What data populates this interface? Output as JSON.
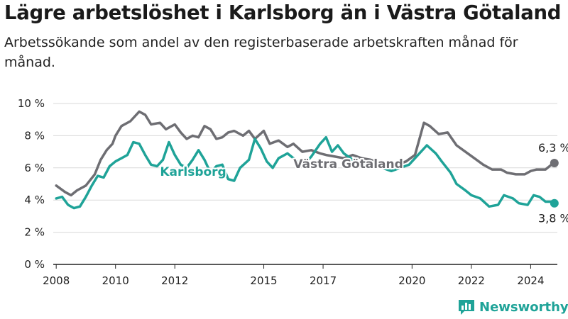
{
  "title": "Lägre arbetslöshet i Karlsborg än i Västra Götaland",
  "subtitle": "Arbetssökande som andel av den registerbaserade arbetskraften månad för månad.",
  "brand": {
    "name": "Newsworthy",
    "color": "#1fa398",
    "icon": "bar-chart-logo-icon"
  },
  "colors": {
    "karlsborg": "#1fa398",
    "vastra_gotaland": "#6e6e73",
    "grid": "#d9d9d9",
    "axis": "#222222"
  },
  "chart_data": {
    "type": "line",
    "xlabel": "",
    "ylabel": "",
    "xlim": [
      2007.9,
      2024.9
    ],
    "ylim": [
      0,
      10
    ],
    "grid": true,
    "legend": "inline labels",
    "x_ticks": [
      {
        "value": 2008,
        "label": "2008"
      },
      {
        "value": 2010,
        "label": "2010"
      },
      {
        "value": 2012,
        "label": "2012"
      },
      {
        "value": 2015,
        "label": "2015"
      },
      {
        "value": 2017,
        "label": "2017"
      },
      {
        "value": 2020,
        "label": "2020"
      },
      {
        "value": 2022,
        "label": "2022"
      },
      {
        "value": 2024,
        "label": "2024"
      }
    ],
    "y_ticks": [
      {
        "value": 0,
        "label": "0 %"
      },
      {
        "value": 2,
        "label": "2 %"
      },
      {
        "value": 4,
        "label": "4 %"
      },
      {
        "value": 6,
        "label": "6 %"
      },
      {
        "value": 8,
        "label": "8 %"
      },
      {
        "value": 10,
        "label": "10 %"
      }
    ],
    "series": [
      {
        "name": "Västra Götaland",
        "color": "#6e6e73",
        "end_label": "6,3 %",
        "points": [
          [
            2008.0,
            4.9
          ],
          [
            2008.3,
            4.5
          ],
          [
            2008.5,
            4.3
          ],
          [
            2008.7,
            4.6
          ],
          [
            2009.0,
            4.9
          ],
          [
            2009.3,
            5.6
          ],
          [
            2009.5,
            6.5
          ],
          [
            2009.7,
            7.1
          ],
          [
            2009.9,
            7.5
          ],
          [
            2010.0,
            8.0
          ],
          [
            2010.2,
            8.6
          ],
          [
            2010.5,
            8.9
          ],
          [
            2010.8,
            9.5
          ],
          [
            2011.0,
            9.3
          ],
          [
            2011.2,
            8.7
          ],
          [
            2011.5,
            8.8
          ],
          [
            2011.7,
            8.4
          ],
          [
            2012.0,
            8.7
          ],
          [
            2012.2,
            8.2
          ],
          [
            2012.4,
            7.8
          ],
          [
            2012.6,
            8.0
          ],
          [
            2012.8,
            7.9
          ],
          [
            2013.0,
            8.6
          ],
          [
            2013.2,
            8.4
          ],
          [
            2013.4,
            7.8
          ],
          [
            2013.6,
            7.9
          ],
          [
            2013.8,
            8.2
          ],
          [
            2014.0,
            8.3
          ],
          [
            2014.3,
            8.0
          ],
          [
            2014.5,
            8.3
          ],
          [
            2014.7,
            7.8
          ],
          [
            2015.0,
            8.3
          ],
          [
            2015.2,
            7.5
          ],
          [
            2015.5,
            7.7
          ],
          [
            2015.8,
            7.3
          ],
          [
            2016.0,
            7.5
          ],
          [
            2016.3,
            7.0
          ],
          [
            2016.6,
            7.1
          ],
          [
            2016.9,
            6.9
          ],
          [
            2017.1,
            6.8
          ],
          [
            2017.4,
            6.7
          ],
          [
            2017.7,
            6.6
          ],
          [
            2018.0,
            6.8
          ],
          [
            2018.3,
            6.6
          ],
          [
            2018.6,
            6.5
          ],
          [
            2018.9,
            6.3
          ],
          [
            2019.2,
            6.1
          ],
          [
            2019.5,
            6.2
          ],
          [
            2019.8,
            6.4
          ],
          [
            2020.1,
            6.8
          ],
          [
            2020.4,
            8.8
          ],
          [
            2020.6,
            8.6
          ],
          [
            2020.9,
            8.1
          ],
          [
            2021.2,
            8.2
          ],
          [
            2021.5,
            7.4
          ],
          [
            2021.8,
            7.0
          ],
          [
            2022.1,
            6.6
          ],
          [
            2022.4,
            6.2
          ],
          [
            2022.7,
            5.9
          ],
          [
            2023.0,
            5.9
          ],
          [
            2023.2,
            5.7
          ],
          [
            2023.5,
            5.6
          ],
          [
            2023.8,
            5.6
          ],
          [
            2024.0,
            5.8
          ],
          [
            2024.2,
            5.9
          ],
          [
            2024.5,
            5.9
          ],
          [
            2024.7,
            6.2
          ],
          [
            2024.8,
            6.3
          ]
        ]
      },
      {
        "name": "Karlsborg",
        "color": "#1fa398",
        "end_label": "3,8 %",
        "points": [
          [
            2008.0,
            4.1
          ],
          [
            2008.2,
            4.2
          ],
          [
            2008.4,
            3.7
          ],
          [
            2008.6,
            3.5
          ],
          [
            2008.8,
            3.6
          ],
          [
            2009.0,
            4.2
          ],
          [
            2009.2,
            4.9
          ],
          [
            2009.4,
            5.5
          ],
          [
            2009.6,
            5.4
          ],
          [
            2009.8,
            6.1
          ],
          [
            2010.0,
            6.4
          ],
          [
            2010.2,
            6.6
          ],
          [
            2010.4,
            6.8
          ],
          [
            2010.6,
            7.6
          ],
          [
            2010.8,
            7.5
          ],
          [
            2011.0,
            6.8
          ],
          [
            2011.2,
            6.2
          ],
          [
            2011.4,
            6.1
          ],
          [
            2011.6,
            6.5
          ],
          [
            2011.8,
            7.6
          ],
          [
            2012.0,
            6.8
          ],
          [
            2012.2,
            6.2
          ],
          [
            2012.4,
            6.0
          ],
          [
            2012.6,
            6.5
          ],
          [
            2012.8,
            7.1
          ],
          [
            2013.0,
            6.5
          ],
          [
            2013.2,
            5.7
          ],
          [
            2013.4,
            6.1
          ],
          [
            2013.6,
            6.2
          ],
          [
            2013.8,
            5.3
          ],
          [
            2014.0,
            5.2
          ],
          [
            2014.2,
            6.0
          ],
          [
            2014.5,
            6.5
          ],
          [
            2014.7,
            7.8
          ],
          [
            2014.9,
            7.2
          ],
          [
            2015.1,
            6.4
          ],
          [
            2015.3,
            6.0
          ],
          [
            2015.5,
            6.6
          ],
          [
            2015.8,
            6.9
          ],
          [
            2016.0,
            6.6
          ],
          [
            2016.3,
            6.1
          ],
          [
            2016.6,
            6.7
          ],
          [
            2016.9,
            7.5
          ],
          [
            2017.1,
            7.9
          ],
          [
            2017.3,
            7.0
          ],
          [
            2017.5,
            7.4
          ],
          [
            2017.7,
            6.9
          ],
          [
            2018.0,
            6.5
          ],
          [
            2018.4,
            6.3
          ],
          [
            2018.7,
            6.1
          ],
          [
            2019.0,
            6.0
          ],
          [
            2019.3,
            5.8
          ],
          [
            2019.6,
            6.0
          ],
          [
            2019.9,
            6.2
          ],
          [
            2020.1,
            6.6
          ],
          [
            2020.3,
            7.0
          ],
          [
            2020.5,
            7.4
          ],
          [
            2020.8,
            6.9
          ],
          [
            2021.0,
            6.4
          ],
          [
            2021.3,
            5.7
          ],
          [
            2021.5,
            5.0
          ],
          [
            2021.8,
            4.6
          ],
          [
            2022.0,
            4.3
          ],
          [
            2022.3,
            4.1
          ],
          [
            2022.6,
            3.6
          ],
          [
            2022.9,
            3.7
          ],
          [
            2023.1,
            4.3
          ],
          [
            2023.4,
            4.1
          ],
          [
            2023.6,
            3.8
          ],
          [
            2023.9,
            3.7
          ],
          [
            2024.1,
            4.3
          ],
          [
            2024.3,
            4.2
          ],
          [
            2024.5,
            3.9
          ],
          [
            2024.7,
            3.9
          ],
          [
            2024.8,
            3.8
          ]
        ]
      }
    ]
  }
}
